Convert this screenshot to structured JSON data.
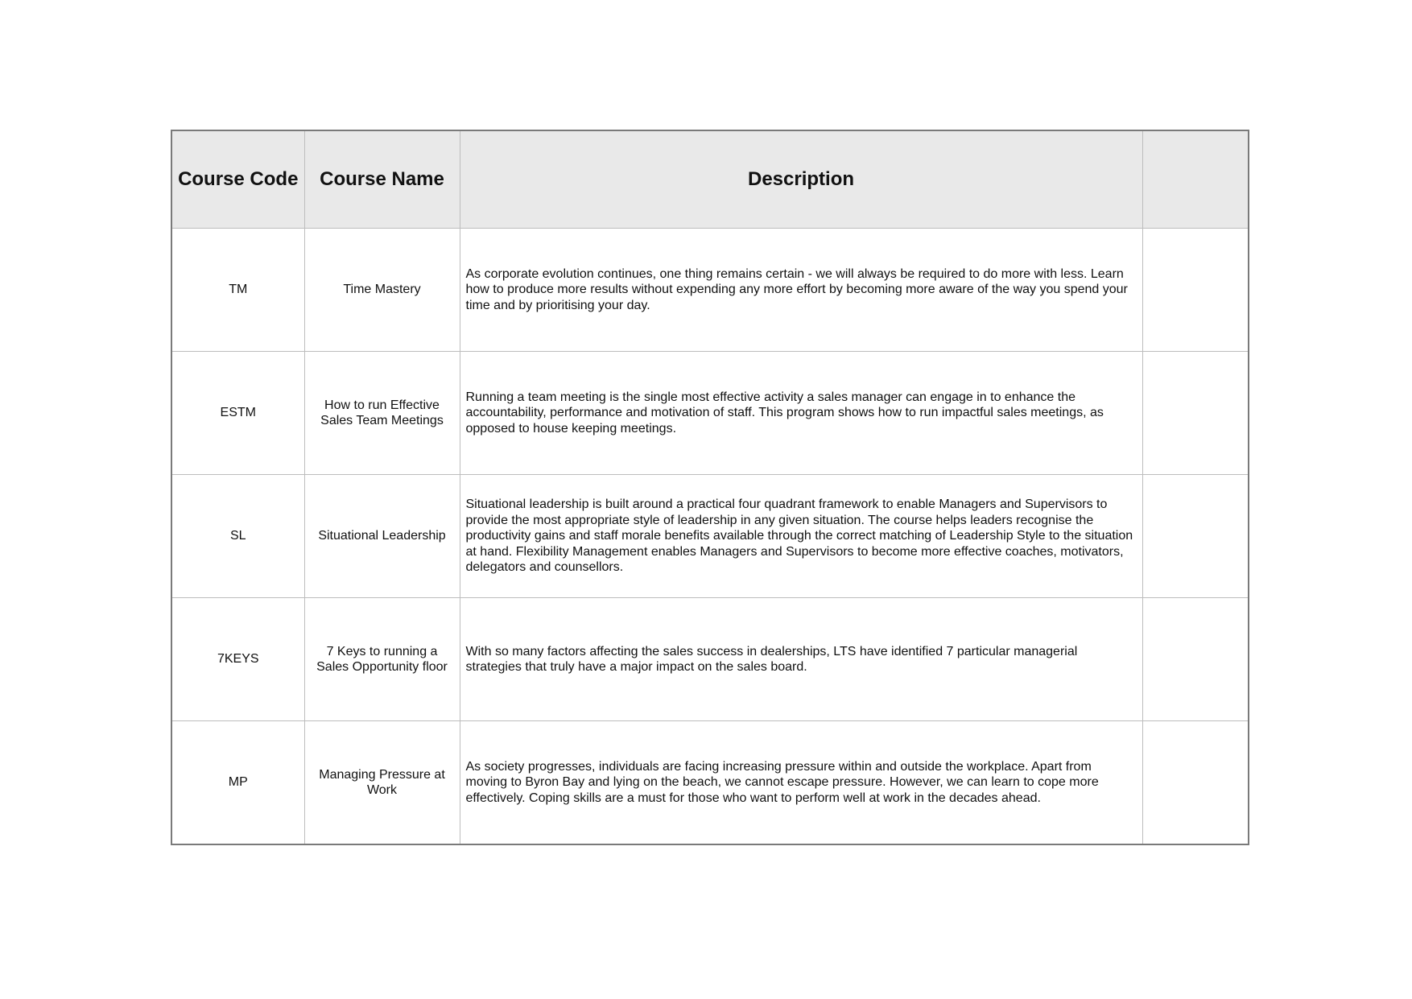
{
  "table": {
    "headers": [
      "Course Code",
      "Course Name",
      "Description",
      ""
    ],
    "rows": [
      {
        "code": "TM",
        "name": "Time Mastery",
        "description": "As corporate evolution continues, one thing remains certain - we will always be required to do more with less. Learn how to produce more results without expending any more effort by becoming more aware of the way you spend your time and by prioritising your day.",
        "extra": ""
      },
      {
        "code": "ESTM",
        "name": "How to run Effective Sales Team Meetings",
        "description": "Running a team meeting is the single most effective activity a sales manager can engage in to enhance the accountability, performance and motivation of staff. This program shows how to run impactful sales meetings, as opposed to house keeping meetings.",
        "extra": ""
      },
      {
        "code": "SL",
        "name": "Situational Leadership",
        "description": "Situational leadership is built around a practical four quadrant framework to enable Managers and Supervisors to provide the most appropriate style of leadership in any given situation. The course helps leaders recognise the productivity gains and staff morale benefits available through the correct matching of Leadership Style to the situation at hand. Flexibility Management enables Managers and Supervisors to become more effective coaches, motivators, delegators and counsellors.",
        "extra": ""
      },
      {
        "code": "7KEYS",
        "name": "7 Keys to running a Sales Opportunity floor",
        "description": "With so many factors affecting the sales success in dealerships, LTS have identified 7 particular managerial strategies that truly have a major impact on the sales board.",
        "extra": ""
      },
      {
        "code": "MP",
        "name": "Managing Pressure at Work",
        "description": "As society progresses, individuals are facing increasing pressure within and outside the workplace. Apart from moving to Byron Bay and lying on the beach, we cannot escape pressure. However, we can learn to cope more effectively. Coping skills are a must for those who want to perform well at work in the decades ahead.",
        "extra": ""
      }
    ]
  }
}
